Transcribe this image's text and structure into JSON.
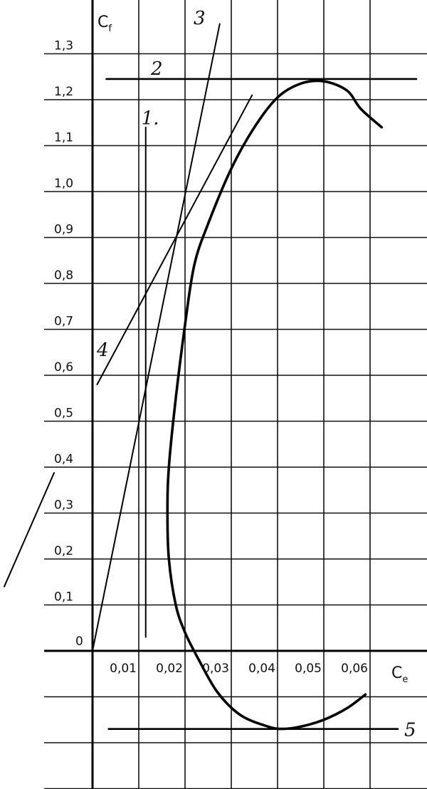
{
  "chart_data": {
    "type": "line",
    "title": "",
    "xlabel": "C",
    "xlabel_sub": "e",
    "ylabel": "C",
    "ylabel_sub": "f",
    "origin_label": "0",
    "x_ticks": [
      "0,01",
      "0,02",
      "0,03",
      "0,04",
      "0,05",
      "0,06"
    ],
    "y_ticks": [
      "0,1",
      "0,2",
      "0,3",
      "0,4",
      "0,5",
      "0,6",
      "0,7",
      "0,8",
      "0,9",
      "1,0",
      "1,1",
      "1,2",
      "1,3"
    ],
    "xlim": [
      0,
      0.07
    ],
    "ylim": [
      -0.3,
      1.38
    ],
    "grid": true,
    "series": [
      {
        "values": [
          [
            0.0625,
            1.14
          ],
          [
            0.058,
            1.18
          ],
          [
            0.055,
            1.22
          ],
          [
            0.05,
            1.24
          ],
          [
            0.045,
            1.235
          ],
          [
            0.04,
            1.205
          ],
          [
            0.035,
            1.14
          ],
          [
            0.03,
            1.05
          ],
          [
            0.025,
            0.93
          ],
          [
            0.022,
            0.84
          ],
          [
            0.02,
            0.71
          ],
          [
            0.018,
            0.55
          ],
          [
            0.0165,
            0.4
          ],
          [
            0.0162,
            0.3
          ],
          [
            0.0165,
            0.2
          ],
          [
            0.018,
            0.1
          ],
          [
            0.02,
            0.04
          ],
          [
            0.023,
            -0.02
          ],
          [
            0.027,
            -0.09
          ],
          [
            0.032,
            -0.14
          ],
          [
            0.038,
            -0.165
          ],
          [
            0.041,
            -0.17
          ],
          [
            0.045,
            -0.165
          ],
          [
            0.05,
            -0.15
          ],
          [
            0.055,
            -0.125
          ],
          [
            0.059,
            -0.095
          ]
        ]
      }
    ],
    "annotations": [
      {
        "label": "1.",
        "x": [
          0.0115,
          0.0115
        ],
        "y": [
          1.14,
          0.03
        ]
      },
      {
        "label": "2",
        "x": [
          0.003,
          0.07
        ],
        "y": [
          1.245,
          1.245
        ]
      },
      {
        "label": "3",
        "x": [
          0.0,
          0.0275
        ],
        "y": [
          0.0,
          1.365
        ]
      },
      {
        "label": "4",
        "x": [
          0.001,
          0.0345
        ],
        "y": [
          0.58,
          1.21
        ]
      },
      {
        "label": "5",
        "x": [
          0.0035,
          0.066
        ],
        "y": [
          -0.17,
          -0.17
        ]
      }
    ]
  }
}
